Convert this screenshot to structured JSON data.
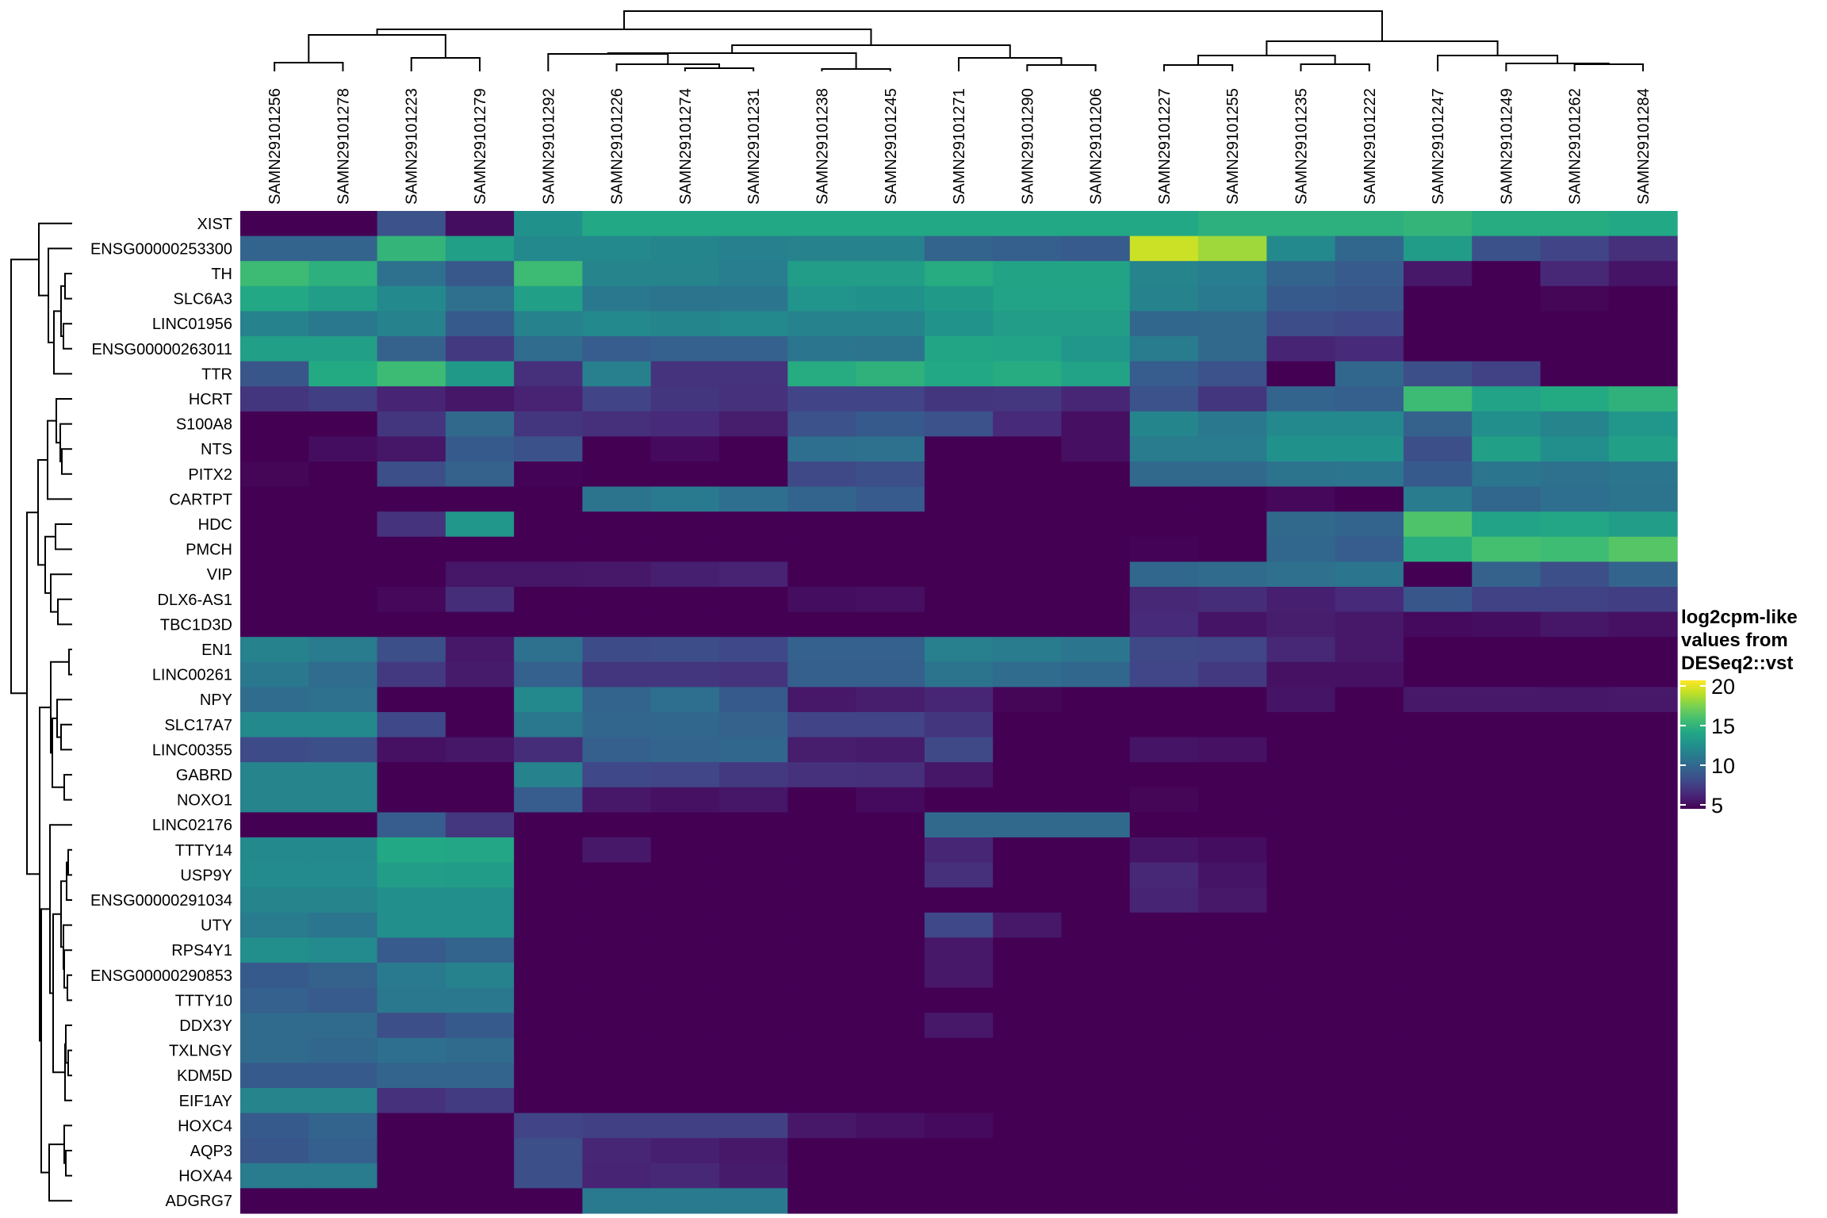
{
  "chart_data": {
    "type": "heatmap",
    "colormap": "viridis",
    "legend": {
      "title_lines": [
        "log2cpm-like",
        "values from",
        "DESeq2::vst"
      ],
      "range": [
        5,
        20
      ],
      "ticks": [
        "5",
        "10",
        "15",
        "20"
      ],
      "position": "right"
    },
    "row_dendrogram": true,
    "column_dendrogram": true,
    "columns": [
      "SAMN29101256",
      "SAMN29101278",
      "SAMN29101223",
      "SAMN29101279",
      "SAMN29101292",
      "SAMN29101226",
      "SAMN29101274",
      "SAMN29101231",
      "SAMN29101238",
      "SAMN29101245",
      "SAMN29101271",
      "SAMN29101290",
      "SAMN29101206",
      "SAMN29101227",
      "SAMN29101255",
      "SAMN29101235",
      "SAMN29101222",
      "SAMN29101247",
      "SAMN29101249",
      "SAMN29101262",
      "SAMN29101284"
    ],
    "rows": [
      "XIST",
      "ENSG00000253300",
      "TH",
      "SLC6A3",
      "LINC01956",
      "ENSG00000263011",
      "TTR",
      "HCRT",
      "S100A8",
      "NTS",
      "PITX2",
      "CARTPT",
      "HDC",
      "PMCH",
      "VIP",
      "DLX6-AS1",
      "TBC1D3D",
      "EN1",
      "LINC00261",
      "NPY",
      "SLC17A7",
      "LINC00355",
      "GABRD",
      "NOXO1",
      "LINC02176",
      "TTTY14",
      "USP9Y",
      "ENSG00000291034",
      "UTY",
      "RPS4Y1",
      "ENSG00000290853",
      "TTTY10",
      "DDX3Y",
      "TXLNGY",
      "KDM5D",
      "EIF1AY",
      "HOXC4",
      "AQP3",
      "HOXA4",
      "ADGRG7"
    ],
    "values": [
      [
        5,
        5,
        8.8,
        5.5,
        12.5,
        14,
        14,
        14,
        14,
        14,
        14,
        14,
        14,
        14,
        14.5,
        14.5,
        14.5,
        14.8,
        14.2,
        14.2,
        14
      ],
      [
        9.8,
        9.8,
        14.8,
        13.4,
        12,
        12,
        11.8,
        11.5,
        11.6,
        11.6,
        9.8,
        9.5,
        9.3,
        18.8,
        17.8,
        12,
        10,
        13.2,
        8.7,
        8,
        7
      ],
      [
        15.2,
        14.5,
        10.6,
        9.1,
        15.2,
        11.7,
        11.7,
        11.3,
        13.3,
        13.3,
        14.2,
        13.7,
        13.7,
        11.7,
        11.3,
        9.8,
        9.3,
        6,
        5,
        6.7,
        5.8
      ],
      [
        14,
        13.3,
        12,
        10.5,
        13.4,
        11,
        10.7,
        10.8,
        12.7,
        12.5,
        13,
        13.6,
        13.6,
        11.6,
        11.1,
        9.2,
        9,
        5,
        5,
        5.2,
        5
      ],
      [
        11.6,
        11,
        11.6,
        9.2,
        11.6,
        12,
        11.8,
        12,
        11.6,
        11.6,
        12.6,
        13.3,
        13.3,
        10,
        10.1,
        8.5,
        8.2,
        5,
        5,
        5,
        5
      ],
      [
        13.4,
        13.4,
        9.7,
        7.5,
        10.3,
        9.4,
        9.6,
        9.6,
        10.8,
        10.7,
        13.8,
        13.6,
        12.8,
        11.2,
        10.1,
        6.5,
        6.8,
        5,
        5,
        5,
        5
      ],
      [
        9,
        14.1,
        15.2,
        13,
        7,
        11.4,
        7.2,
        7.2,
        14.2,
        14.6,
        14,
        14.2,
        13.6,
        9.4,
        8.8,
        5,
        10,
        8.6,
        7.9,
        5,
        5
      ],
      [
        7.3,
        7.7,
        6.5,
        5.9,
        6.4,
        8,
        7.3,
        7.1,
        8,
        8,
        7.3,
        7.4,
        6.6,
        8.8,
        7.3,
        9.8,
        9.5,
        15.2,
        13.6,
        14.1,
        14.6
      ],
      [
        5,
        5,
        7.3,
        10.1,
        7.3,
        7,
        6.8,
        6.2,
        8.8,
        9.2,
        8.8,
        6.8,
        5.6,
        11.8,
        11,
        12,
        12,
        9.7,
        12.4,
        11.7,
        12.8
      ],
      [
        5,
        5.5,
        5.9,
        9.2,
        8.7,
        5,
        5.4,
        5,
        10.4,
        10.6,
        5,
        5,
        5.6,
        11.2,
        11.2,
        12.5,
        12.5,
        8.6,
        13.5,
        12.4,
        13.5
      ],
      [
        5.2,
        5,
        8.6,
        9.7,
        5.1,
        5,
        5,
        5,
        8.3,
        8.6,
        5,
        5,
        5,
        10.1,
        10.1,
        10.7,
        10.8,
        9.2,
        10.8,
        10.6,
        10.8
      ],
      [
        5,
        5,
        5,
        5,
        5,
        10.7,
        11.1,
        10.4,
        9.8,
        9.3,
        5,
        5,
        5,
        5,
        5,
        5.3,
        5,
        11.2,
        10,
        10.4,
        10.7
      ],
      [
        5,
        5,
        7.2,
        12.8,
        5,
        5,
        5,
        5,
        5,
        5,
        5,
        5,
        5,
        5,
        5,
        10.1,
        9.8,
        15.8,
        13.6,
        13.9,
        13.3
      ],
      [
        5,
        5,
        5,
        5,
        5,
        5,
        5,
        5,
        5,
        5,
        5,
        5,
        5,
        5.1,
        5,
        10,
        9.4,
        14.3,
        15.5,
        15.3,
        16
      ],
      [
        5,
        5,
        5,
        5.9,
        5.9,
        6,
        6.3,
        6.4,
        5,
        5,
        5,
        5,
        5,
        10,
        10.2,
        10.5,
        10.8,
        5,
        9.7,
        8.6,
        9.8
      ],
      [
        5,
        5,
        5.3,
        6.9,
        5,
        5,
        5,
        5,
        5.5,
        5.6,
        5,
        5,
        5,
        6.7,
        6.9,
        6.3,
        6.8,
        9,
        7.9,
        7.9,
        7.7
      ],
      [
        5,
        5,
        5,
        5,
        5,
        5,
        5,
        5,
        5,
        5,
        5,
        5,
        5,
        6.8,
        5.8,
        6.2,
        6,
        5.4,
        5.5,
        5.9,
        5.7
      ],
      [
        11.6,
        11.2,
        8.6,
        6,
        10.6,
        8.4,
        8.5,
        8.2,
        9.6,
        9.6,
        11.4,
        11.2,
        10.9,
        8.3,
        8.1,
        6.7,
        6,
        5,
        5,
        5,
        5
      ],
      [
        11,
        10.3,
        7.5,
        6.1,
        9.6,
        7.3,
        7.3,
        7.2,
        9.5,
        9.5,
        10.7,
        10.3,
        10,
        8.1,
        7.5,
        5.7,
        5.7,
        5,
        5,
        5,
        5
      ],
      [
        10.3,
        10.6,
        5,
        5,
        12,
        9.8,
        10.4,
        9.2,
        6,
        6.2,
        6.6,
        5.2,
        5,
        5,
        5,
        5.8,
        5,
        6,
        6,
        5.9,
        6
      ],
      [
        12,
        12,
        8.2,
        5,
        11,
        9.9,
        10,
        9.7,
        8,
        8,
        7.3,
        5,
        5,
        5,
        5,
        5,
        5,
        5,
        5,
        5,
        5
      ],
      [
        8.4,
        8.6,
        5.7,
        5.9,
        6.9,
        9.5,
        9.8,
        10,
        6.2,
        6.1,
        8.3,
        5,
        5,
        5.8,
        5.7,
        5,
        5,
        5,
        5,
        5,
        5
      ],
      [
        11.7,
        11.7,
        5,
        5,
        11.6,
        8.2,
        8.1,
        7.5,
        7.1,
        7,
        5.9,
        5,
        5,
        5,
        5,
        5,
        5,
        5,
        5,
        5,
        5
      ],
      [
        11.7,
        11.7,
        5,
        5,
        9.4,
        6,
        5.7,
        5.9,
        5,
        5.4,
        5,
        5,
        5,
        5.2,
        5,
        5,
        5,
        5,
        5,
        5,
        5
      ],
      [
        5,
        5,
        9.4,
        7.4,
        5,
        5,
        5,
        5,
        5,
        5,
        10.1,
        10.1,
        10.1,
        5,
        5,
        5,
        5,
        5,
        5,
        5,
        5
      ],
      [
        12,
        12,
        14,
        13.9,
        5,
        6,
        5,
        5,
        5,
        5,
        6.6,
        5,
        5,
        5.8,
        5.5,
        5,
        5,
        5,
        5,
        5,
        5
      ],
      [
        12.1,
        12.1,
        13.3,
        13.2,
        5,
        5,
        5,
        5,
        5,
        5,
        7,
        5,
        5,
        6.7,
        5.8,
        5,
        5,
        5,
        5,
        5,
        5
      ],
      [
        11.7,
        11.7,
        12.4,
        12.4,
        5,
        5,
        5,
        5,
        5,
        5,
        5,
        5,
        5,
        6.5,
        6,
        5,
        5,
        5,
        5,
        5,
        5
      ],
      [
        11.2,
        10.8,
        12.4,
        12.4,
        5,
        5,
        5,
        5,
        5,
        5,
        8.2,
        6,
        5,
        5,
        5,
        5,
        5,
        5,
        5,
        5,
        5
      ],
      [
        12.4,
        12.1,
        9.3,
        9.8,
        5,
        5,
        5,
        5,
        5,
        5,
        6,
        5,
        5,
        5,
        5,
        5,
        5,
        5,
        5,
        5,
        5
      ],
      [
        9.2,
        9.7,
        11.1,
        11.6,
        5,
        5,
        5,
        5,
        5,
        5,
        6,
        5,
        5,
        5,
        5,
        5,
        5,
        5,
        5,
        5,
        5
      ],
      [
        9.6,
        9.3,
        11,
        11,
        5,
        5,
        5,
        5,
        5,
        5,
        5,
        5,
        5,
        5,
        5,
        5,
        5,
        5,
        5,
        5,
        5
      ],
      [
        10.2,
        10.2,
        8.6,
        9.2,
        5,
        5,
        5,
        5,
        5,
        5,
        6,
        5,
        5,
        5,
        5,
        5,
        5,
        5,
        5,
        5,
        5
      ],
      [
        10.2,
        10,
        10.4,
        10.2,
        5,
        5,
        5,
        5,
        5,
        5,
        5,
        5,
        5,
        5,
        5,
        5,
        5,
        5,
        5,
        5,
        5
      ],
      [
        9.2,
        9.2,
        9.8,
        9.8,
        5,
        5,
        5,
        5,
        5,
        5,
        5,
        5,
        5,
        5,
        5,
        5,
        5,
        5,
        5,
        5,
        5
      ],
      [
        11.7,
        11.7,
        7.1,
        7.6,
        5,
        5,
        5,
        5,
        5,
        5,
        5,
        5,
        5,
        5,
        5,
        5,
        5,
        5,
        5,
        5,
        5
      ],
      [
        9.2,
        9.8,
        5,
        5,
        8,
        7.8,
        7.8,
        7.8,
        6,
        5.7,
        5.4,
        5,
        5,
        5,
        5,
        5,
        5,
        5,
        5,
        5,
        5
      ],
      [
        9,
        9.5,
        5,
        5,
        8.6,
        6.6,
        6.3,
        6,
        5,
        5,
        5,
        5,
        5,
        5,
        5,
        5,
        5,
        5,
        5,
        5,
        5
      ],
      [
        11.2,
        11.2,
        5,
        5,
        8.6,
        6.5,
        6.7,
        6.1,
        5,
        5,
        5,
        5,
        5,
        5,
        5,
        5,
        5,
        5,
        5,
        5,
        5
      ],
      [
        5,
        5,
        5,
        5,
        5,
        11.1,
        11.1,
        11.1,
        5,
        5,
        5,
        5,
        5,
        5,
        5,
        5,
        5,
        5,
        5,
        5,
        5
      ]
    ]
  }
}
